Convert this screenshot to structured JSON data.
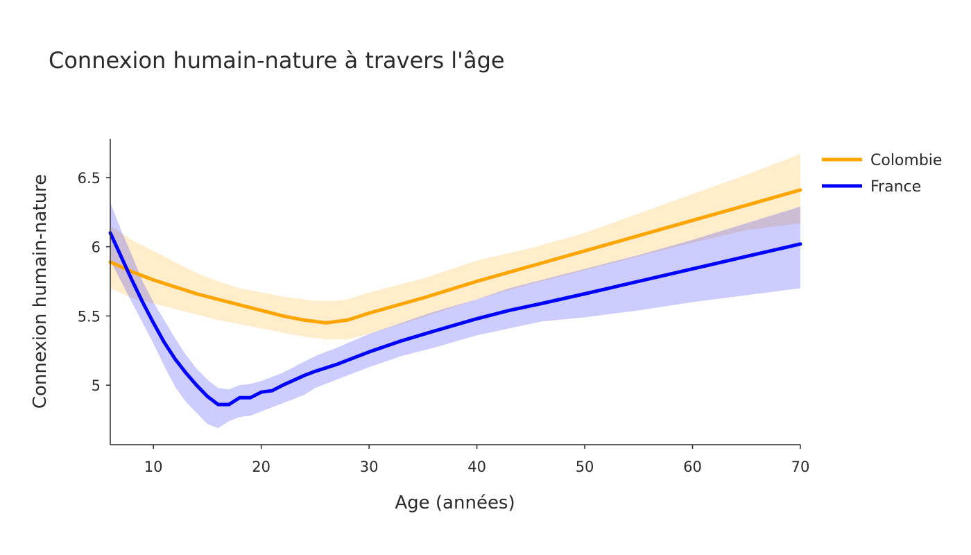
{
  "chart_data": {
    "type": "line",
    "title": "Connexion humain-nature à travers l'âge",
    "xlabel": "Age (années)",
    "ylabel": "Connexion humain-nature",
    "xlim": [
      6,
      70
    ],
    "ylim": [
      4.57,
      6.78
    ],
    "x_ticks": [
      10,
      20,
      30,
      40,
      50,
      60,
      70
    ],
    "x_tick_labels": [
      "10",
      "20",
      "30",
      "40",
      "50",
      "60",
      "70"
    ],
    "y_ticks": [
      5,
      5.5,
      6,
      6.5
    ],
    "y_tick_labels": [
      "5",
      "5.5",
      "6",
      "6.5"
    ],
    "grid": false,
    "legend_position": "top-right",
    "series": [
      {
        "name": "Colombie",
        "color": "#ffa500",
        "band_color": "#ffa500",
        "x": [
          6,
          8,
          10,
          12,
          14,
          16,
          18,
          20,
          22,
          24,
          25,
          26,
          27,
          28,
          30,
          35,
          40,
          45,
          50,
          55,
          60,
          65,
          70
        ],
        "y": [
          5.89,
          5.82,
          5.76,
          5.71,
          5.66,
          5.62,
          5.58,
          5.54,
          5.5,
          5.47,
          5.46,
          5.45,
          5.46,
          5.47,
          5.52,
          5.63,
          5.75,
          5.86,
          5.97,
          6.08,
          6.19,
          6.3,
          6.41
        ],
        "lower": [
          5.7,
          5.63,
          5.59,
          5.55,
          5.51,
          5.47,
          5.44,
          5.41,
          5.38,
          5.35,
          5.34,
          5.33,
          5.33,
          5.33,
          5.37,
          5.49,
          5.62,
          5.73,
          5.83,
          5.93,
          6.03,
          6.12,
          6.17
        ],
        "upper": [
          6.15,
          6.05,
          5.97,
          5.89,
          5.81,
          5.75,
          5.7,
          5.67,
          5.64,
          5.62,
          5.61,
          5.61,
          5.61,
          5.62,
          5.67,
          5.77,
          5.9,
          5.99,
          6.1,
          6.24,
          6.38,
          6.52,
          6.67
        ]
      },
      {
        "name": "France",
        "color": "#0000ff",
        "band_color": "#0000ff",
        "x": [
          6,
          7,
          8,
          9,
          10,
          11,
          12,
          13,
          14,
          15,
          16,
          17,
          18,
          19,
          20,
          21,
          22,
          24,
          25,
          27,
          30,
          33,
          36,
          40,
          43,
          46,
          50,
          55,
          60,
          65,
          70
        ],
        "y": [
          6.1,
          5.93,
          5.76,
          5.6,
          5.45,
          5.31,
          5.19,
          5.09,
          5.0,
          4.92,
          4.86,
          4.86,
          4.91,
          4.91,
          4.95,
          4.96,
          5.0,
          5.07,
          5.1,
          5.15,
          5.24,
          5.32,
          5.39,
          5.48,
          5.54,
          5.59,
          5.66,
          5.75,
          5.84,
          5.93,
          6.02
        ],
        "lower": [
          5.9,
          5.75,
          5.6,
          5.45,
          5.3,
          5.14,
          4.99,
          4.88,
          4.8,
          4.72,
          4.69,
          4.74,
          4.77,
          4.78,
          4.81,
          4.84,
          4.87,
          4.93,
          4.98,
          5.04,
          5.13,
          5.21,
          5.27,
          5.36,
          5.41,
          5.46,
          5.49,
          5.54,
          5.6,
          5.65,
          5.7
        ],
        "upper": [
          6.32,
          6.12,
          5.94,
          5.75,
          5.6,
          5.47,
          5.34,
          5.22,
          5.12,
          5.04,
          4.98,
          4.97,
          5.0,
          5.01,
          5.03,
          5.06,
          5.09,
          5.17,
          5.21,
          5.27,
          5.37,
          5.45,
          5.53,
          5.62,
          5.7,
          5.76,
          5.84,
          5.94,
          6.05,
          6.17,
          6.29
        ]
      }
    ]
  }
}
